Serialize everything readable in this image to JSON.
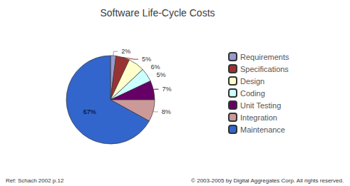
{
  "chart_data": {
    "type": "pie",
    "title": "Software Life-Cycle Costs",
    "categories": [
      "Requirements",
      "Specifications",
      "Design",
      "Coding",
      "Unit Testing",
      "Integration",
      "Maintenance"
    ],
    "values": [
      2,
      5,
      6,
      5,
      7,
      8,
      67
    ],
    "value_labels": [
      "2%",
      "5%",
      "6%",
      "5%",
      "7%",
      "8%",
      "67%"
    ],
    "colors": [
      "#9999CC",
      "#993333",
      "#FFFFCC",
      "#CCFFFF",
      "#660066",
      "#CC9999",
      "#3366CC"
    ],
    "data_labels": true,
    "legend": "right",
    "annotations": [
      "Ref: Schach 2002 p.12",
      "© 2003-2005 by Digital Aggregates Corp. All rights reserved."
    ]
  }
}
